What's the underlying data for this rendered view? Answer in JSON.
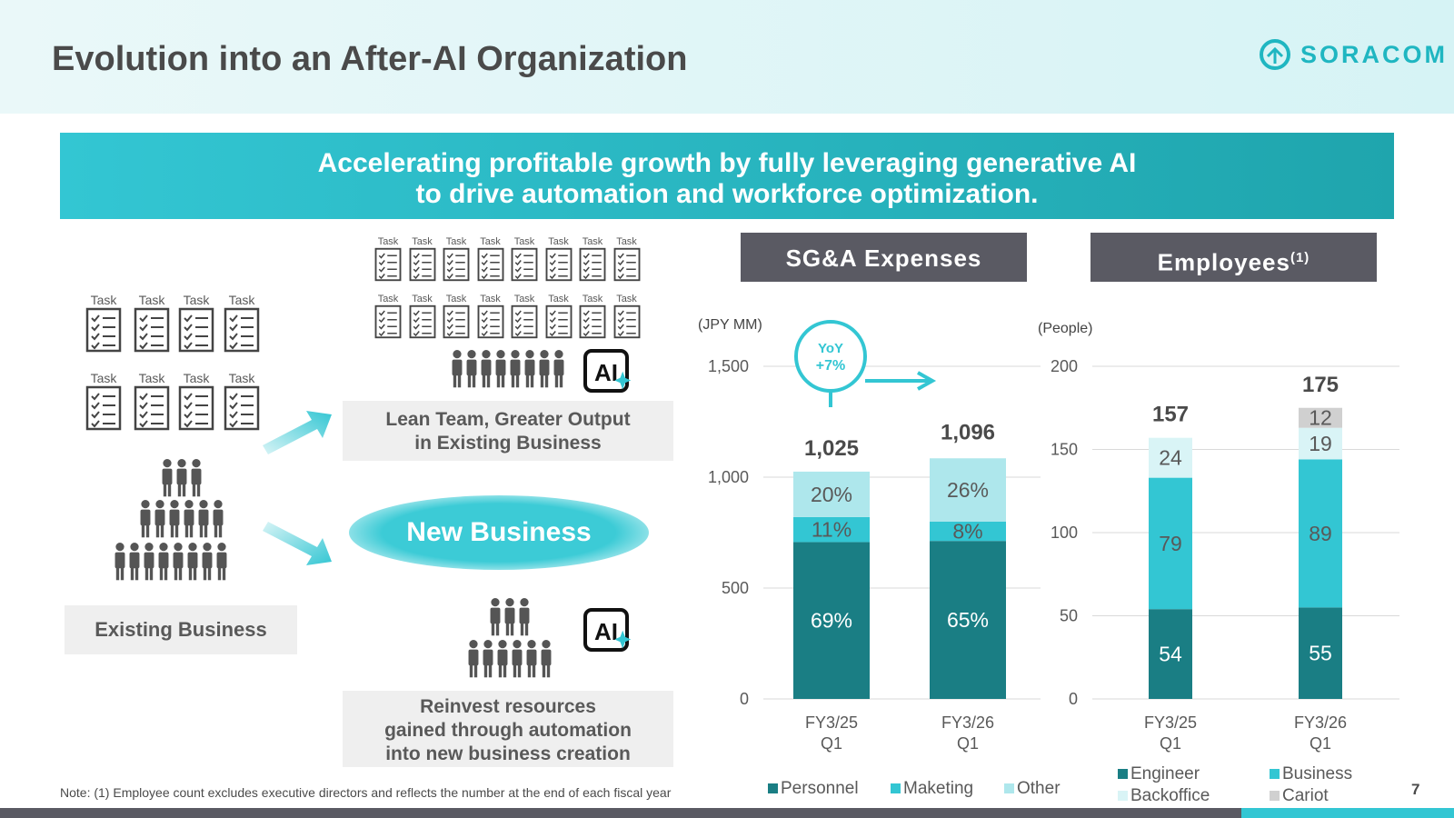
{
  "header": {
    "title": "Evolution into an After-AI Organization",
    "logo_text": "SORACOM"
  },
  "banner": {
    "line1": "Accelerating profitable growth by fully leveraging generative AI",
    "line2": "to drive automation and workforce optimization."
  },
  "diagram": {
    "task_label": "Task",
    "existing_business": "Existing Business",
    "lean_team_line1": "Lean Team, Greater Output",
    "lean_team_line2": "in Existing Business",
    "new_business": "New Business",
    "reinvest_line1": "Reinvest resources",
    "reinvest_line2": "gained through automation",
    "reinvest_line3": "into new business creation",
    "ai_label": "AI"
  },
  "sga_title": "SG&A Expenses",
  "employees_title": "Employees",
  "employees_sup": "(1)",
  "yoy": {
    "line1": "YoY",
    "line2": "+7%"
  },
  "chart_data": [
    {
      "type": "bar",
      "stacked": true,
      "title": "SG&A Expenses",
      "ylabel": "(JPY MM)",
      "ylim": [
        0,
        1500
      ],
      "yticks": [
        "0",
        "500",
        "1,000",
        "1,500"
      ],
      "yticks_values": [
        0,
        500,
        1000,
        1500
      ],
      "categories": [
        "FY3/25 Q1",
        "FY3/26 Q1"
      ],
      "category_lines": [
        [
          "FY3/25",
          "Q1"
        ],
        [
          "FY3/26",
          "Q1"
        ]
      ],
      "totals": [
        1025,
        1096
      ],
      "total_labels": [
        "1,025",
        "1,096"
      ],
      "series": [
        {
          "name": "Personnel",
          "color": "#1a7e84",
          "percent": [
            69,
            65
          ],
          "labels": [
            "69%",
            "65%"
          ]
        },
        {
          "name": "Maketing",
          "color": "#33c6d3",
          "percent": [
            11,
            8
          ],
          "labels": [
            "11%",
            "8%"
          ]
        },
        {
          "name": "Other",
          "color": "#aee7ec",
          "percent": [
            20,
            26
          ],
          "labels": [
            "20%",
            "26%"
          ]
        }
      ],
      "grid": true,
      "legend": "bottom"
    },
    {
      "type": "bar",
      "stacked": true,
      "title": "Employees(1)",
      "ylabel": "(People)",
      "ylim": [
        0,
        200
      ],
      "yticks": [
        "0",
        "50",
        "100",
        "150",
        "200"
      ],
      "yticks_values": [
        0,
        50,
        100,
        150,
        200
      ],
      "categories": [
        "FY3/25 Q1",
        "FY3/26 Q1"
      ],
      "category_lines": [
        [
          "FY3/25",
          "Q1"
        ],
        [
          "FY3/26",
          "Q1"
        ]
      ],
      "totals": [
        157,
        175
      ],
      "total_labels": [
        "157",
        "175"
      ],
      "series": [
        {
          "name": "Engineer",
          "color": "#1a7e84",
          "values": [
            54,
            55
          ]
        },
        {
          "name": "Business",
          "color": "#33c6d3",
          "values": [
            79,
            89
          ]
        },
        {
          "name": "Backoffice",
          "color": "#d9f4f6",
          "values": [
            24,
            19
          ]
        },
        {
          "name": "Cariot",
          "color": "#d0d0d0",
          "values": [
            0,
            12
          ]
        }
      ],
      "grid": true,
      "legend": "bottom"
    }
  ],
  "note": "Note: (1) Employee count excludes executive directors and reflects the number at the end of each fiscal year",
  "page_number": "7"
}
